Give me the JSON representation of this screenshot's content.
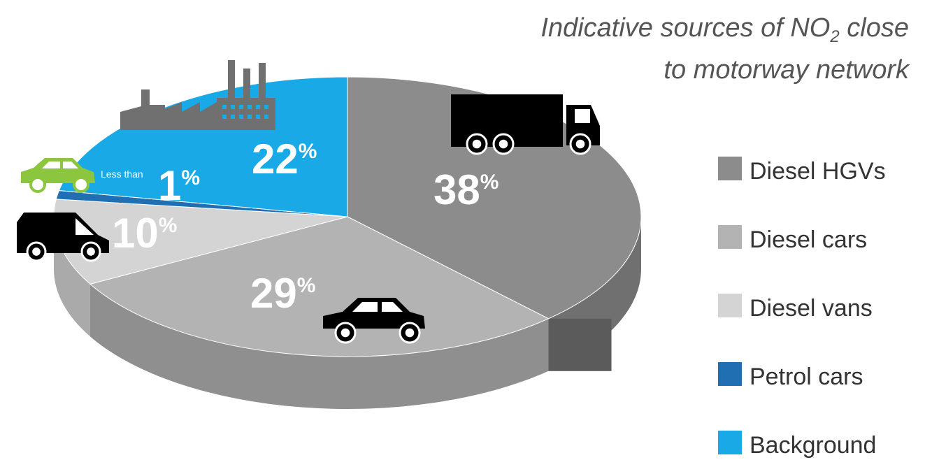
{
  "chart_data": {
    "type": "pie",
    "title_line1": "Indicative sources of NO",
    "title_sub": "2",
    "title_line1_end": " close",
    "title_line2": "to motorway network",
    "slices": [
      {
        "label": "Diesel HGVs",
        "value": 38,
        "display": "38",
        "color": "#8c8c8c",
        "icon": "truck-icon"
      },
      {
        "label": "Diesel cars",
        "value": 29,
        "display": "29",
        "color": "#b3b3b3",
        "icon": "car-icon"
      },
      {
        "label": "Diesel vans",
        "value": 10,
        "display": "10",
        "color": "#d4d4d4",
        "icon": "van-icon"
      },
      {
        "label": "Petrol cars",
        "value": 1,
        "display": "1",
        "prefix": "Less than",
        "color": "#1f6fb2",
        "icon": "green-car-icon"
      },
      {
        "label": "Background",
        "value": 22,
        "display": "22",
        "color": "#18a9e6",
        "icon": "factory-icon"
      }
    ],
    "percent_sign": "%",
    "legend_placement": "right"
  }
}
